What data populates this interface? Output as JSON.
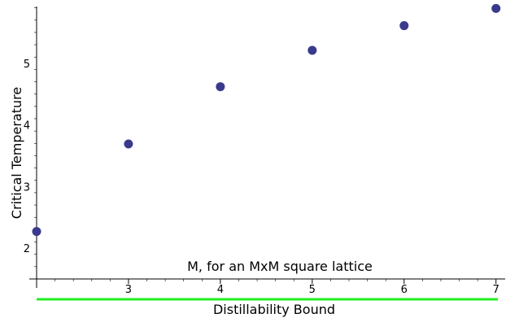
{
  "chart_data": {
    "type": "scatter",
    "title": "",
    "xlabel": "",
    "ylabel": "Critical Temperature",
    "annotations": [
      "M, for an MxM square lattice",
      "Distillability Bound"
    ],
    "xlim": [
      2,
      7.1
    ],
    "ylim": [
      1.5,
      6.0
    ],
    "x_ticks": [
      "3",
      "4",
      "5",
      "6",
      "7"
    ],
    "y_ticks": [
      "2",
      "3",
      "4",
      "5"
    ],
    "grid": false,
    "legend": "none",
    "series": [
      {
        "color": "#3a3a8c",
        "points": [
          {
            "x": 2,
            "y": 2.27
          },
          {
            "x": 3,
            "y": 3.69
          },
          {
            "x": 4,
            "y": 4.62
          },
          {
            "x": 5,
            "y": 5.21
          },
          {
            "x": 6,
            "y": 5.61
          },
          {
            "x": 7,
            "y": 5.89
          }
        ]
      }
    ],
    "reference_lines": [
      {
        "name": "Distillability Bound",
        "y": 1.17,
        "color": "#22ee22"
      }
    ]
  }
}
